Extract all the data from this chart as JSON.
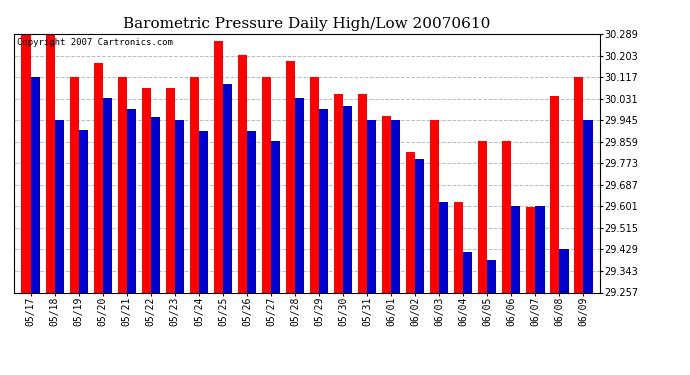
{
  "title": "Barometric Pressure Daily High/Low 20070610",
  "copyright": "Copyright 2007 Cartronics.com",
  "dates": [
    "05/17",
    "05/18",
    "05/19",
    "05/20",
    "05/21",
    "05/22",
    "05/23",
    "05/24",
    "05/25",
    "05/26",
    "05/27",
    "05/28",
    "05/29",
    "05/30",
    "05/31",
    "06/01",
    "06/02",
    "06/03",
    "06/04",
    "06/05",
    "06/06",
    "06/07",
    "06/08",
    "06/09"
  ],
  "highs": [
    30.29,
    30.29,
    30.118,
    30.175,
    30.118,
    30.075,
    30.075,
    30.118,
    30.262,
    30.204,
    30.118,
    30.18,
    30.118,
    30.048,
    30.048,
    29.96,
    29.818,
    29.946,
    29.618,
    29.86,
    29.86,
    29.6,
    30.04,
    30.118
  ],
  "lows": [
    30.118,
    29.946,
    29.904,
    30.032,
    29.988,
    29.958,
    29.946,
    29.9,
    30.09,
    29.9,
    29.86,
    30.032,
    29.99,
    30.0,
    29.946,
    29.946,
    29.79,
    29.618,
    29.418,
    29.386,
    29.601,
    29.601,
    29.429,
    29.946
  ],
  "high_color": "#ff0000",
  "low_color": "#0000cc",
  "bg_color": "#ffffff",
  "plot_bg_color": "#ffffff",
  "grid_color": "#bbbbbb",
  "border_color": "#000000",
  "ymin": 29.257,
  "ymax": 30.29,
  "ytick_interval": 0.086,
  "title_fontsize": 11,
  "copyright_fontsize": 6.5,
  "tick_fontsize": 7,
  "bar_width": 0.38,
  "figwidth": 6.9,
  "figheight": 3.75,
  "dpi": 100
}
